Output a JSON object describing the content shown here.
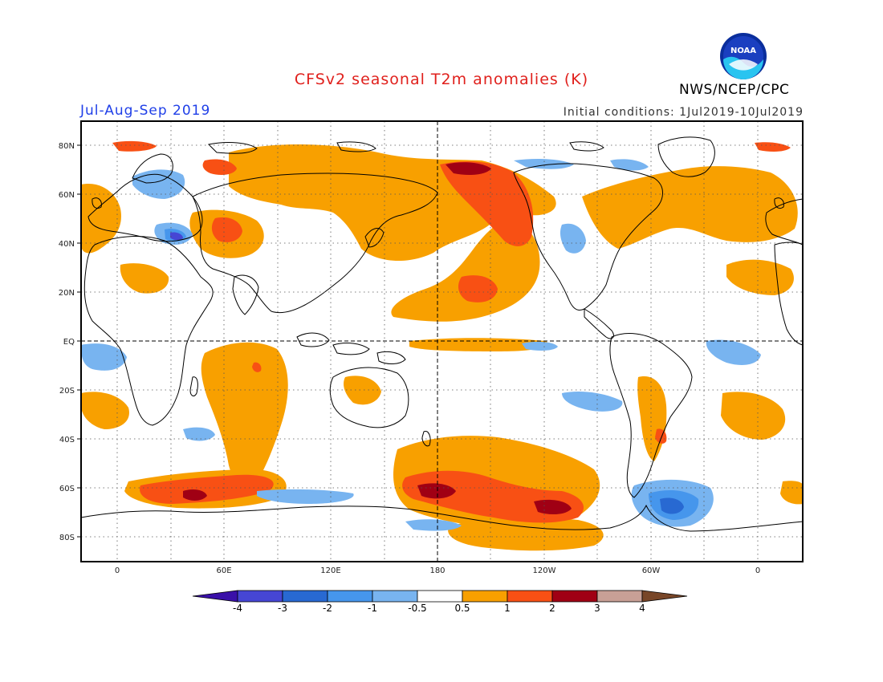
{
  "header": {
    "title": "CFSv2 seasonal T2m anomalies (K)",
    "period": "Jul-Aug-Sep 2019",
    "initial_conditions": "Initial conditions: 1Jul2019-10Jul2019",
    "agency": "NWS/NCEP/CPC",
    "logo_text": "NOAA"
  },
  "map": {
    "lat_labels": [
      "80N",
      "60N",
      "40N",
      "20N",
      "EQ",
      "20S",
      "40S",
      "60S",
      "80S"
    ],
    "lon_labels": [
      "0",
      "60E",
      "120E",
      "180",
      "120W",
      "60W",
      "0"
    ],
    "anomaly_regions": [
      {
        "name": "Bering / Alaska warm",
        "level": 2
      },
      {
        "name": "Central Pacific warm tongue",
        "level": 1
      },
      {
        "name": "South Pacific warm",
        "level": 3
      },
      {
        "name": "Southern Ocean (Indian sector) warm",
        "level": 2
      },
      {
        "name": "Antarctic (Weddell sector) cool",
        "level": -2
      },
      {
        "name": "Eastern Europe cool",
        "level": -2
      }
    ]
  },
  "colorbar": {
    "tick_labels": [
      "-4",
      "-3",
      "-2",
      "-1",
      "-0.5",
      "0.5",
      "1",
      "2",
      "3",
      "4"
    ],
    "colors": [
      "#3a10a8",
      "#4646d4",
      "#2869d2",
      "#4696ec",
      "#78b4f0",
      "#ffffff",
      "#f8a000",
      "#f85014",
      "#a00014",
      "#c8a096",
      "#784628"
    ]
  }
}
